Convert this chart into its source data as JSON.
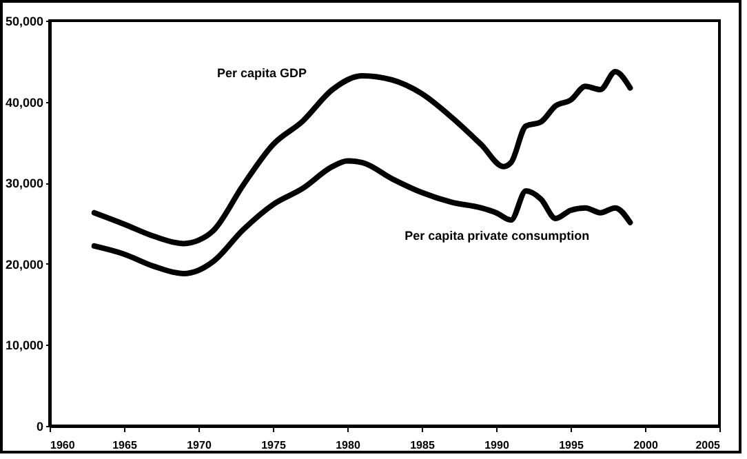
{
  "chart_data": {
    "type": "line",
    "x": [
      1963,
      1965,
      1967,
      1969,
      1970,
      1971,
      1973,
      1975,
      1977,
      1979,
      1981,
      1983,
      1985,
      1987,
      1989,
      1990.5,
      1991,
      1992,
      1993,
      1994,
      1995,
      1996,
      1997,
      1998,
      1999
    ],
    "series": [
      {
        "name": "Per capita GDP",
        "color": "#000000",
        "values": [
          26300,
          24900,
          23400,
          22500,
          22900,
          24100,
          29700,
          34700,
          37600,
          41500,
          43200,
          42700,
          41000,
          38100,
          34700,
          32000,
          32500,
          37000,
          37500,
          39500,
          40200,
          41900,
          41500,
          43700,
          41700
        ]
      },
      {
        "name": "Per capita private consumption",
        "color": "#000000",
        "x": [
          1963,
          1965,
          1967,
          1969,
          1970,
          1971,
          1973,
          1975,
          1977,
          1979,
          1980,
          1981,
          1983,
          1985,
          1987,
          1989,
          1990,
          1991,
          1992,
          1993,
          1994,
          1995,
          1996,
          1997,
          1998,
          1999
        ],
        "values": [
          22200,
          21200,
          19700,
          18800,
          19200,
          20300,
          24200,
          27300,
          29300,
          32000,
          32700,
          32500,
          30500,
          28800,
          27600,
          26900,
          26300,
          25400,
          29000,
          28000,
          25600,
          26600,
          26900,
          26300,
          26900,
          25100
        ]
      }
    ],
    "xlim": [
      1960,
      2005
    ],
    "xticks": [
      1960,
      1965,
      1970,
      1975,
      1980,
      1985,
      1990,
      1995,
      2000,
      2005
    ],
    "ylim": [
      0,
      50000
    ],
    "yticks": [
      0,
      {
        "value": 10000,
        "label": "10,000"
      },
      {
        "value": 20000,
        "label": "20,000"
      },
      {
        "value": 30000,
        "label": "30,000"
      },
      {
        "value": 40000,
        "label": "40,000"
      },
      {
        "value": 50000,
        "label": "50,000"
      }
    ],
    "marker": "none",
    "line_style": "solid"
  }
}
